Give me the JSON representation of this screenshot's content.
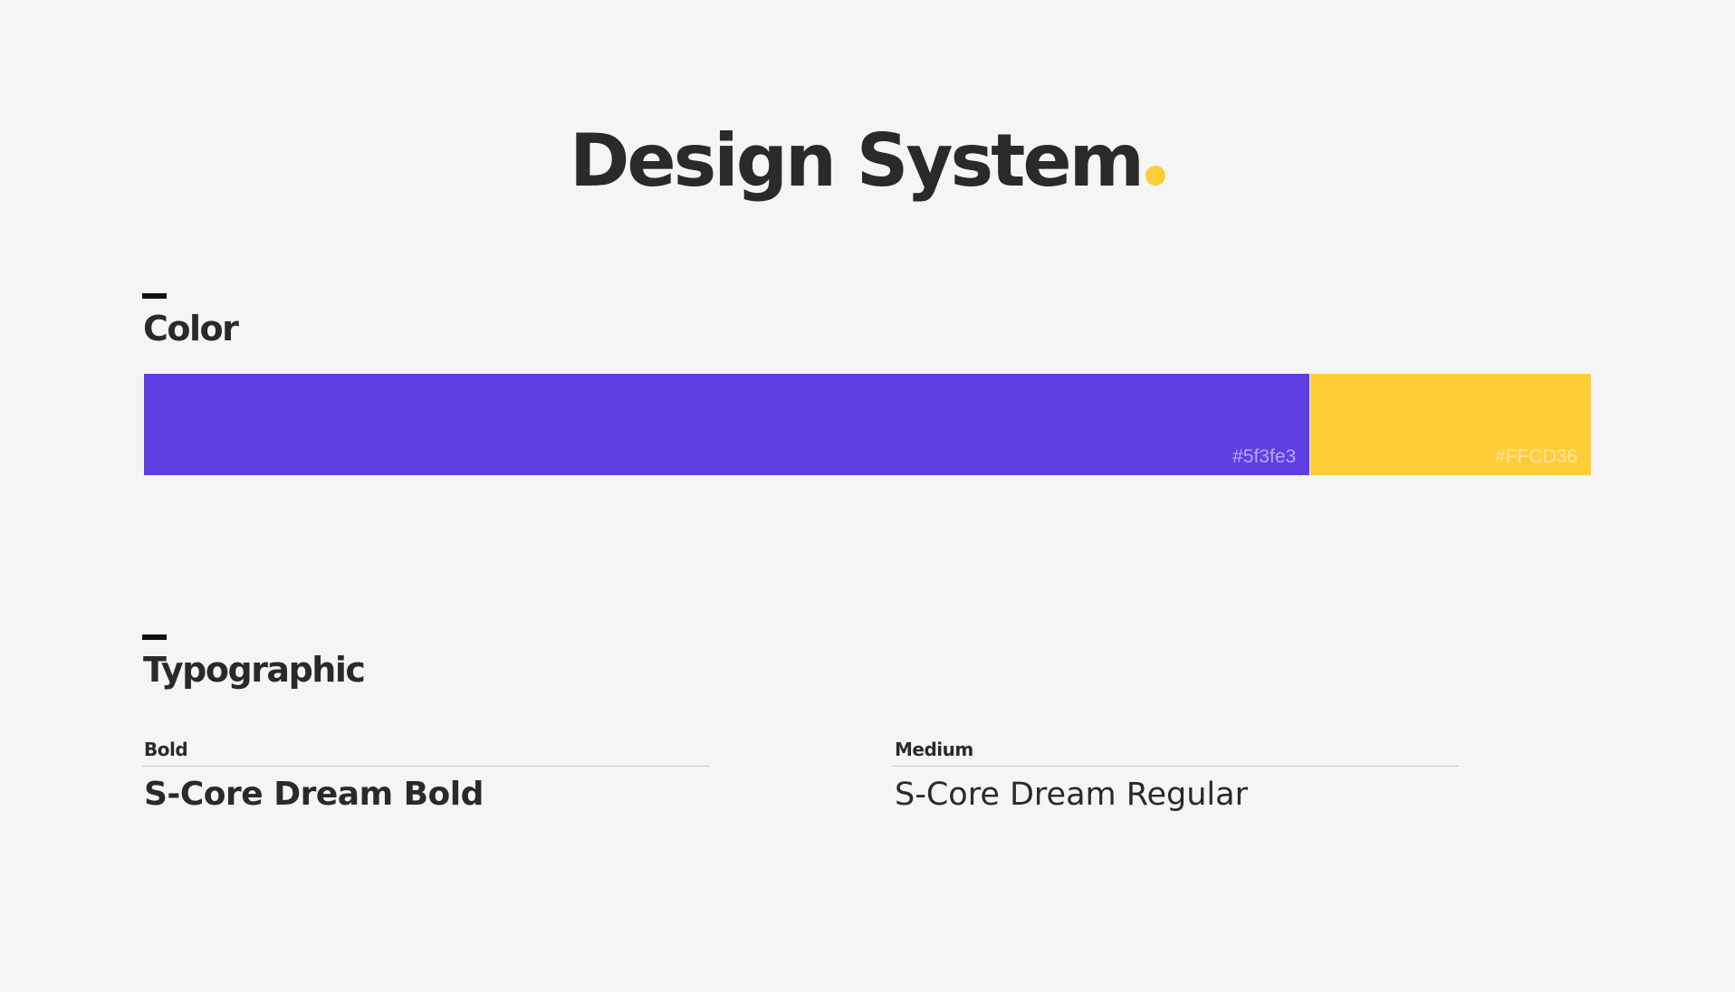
{
  "header": {
    "title": "Design System",
    "dot_color": "#FFCD36"
  },
  "color_section": {
    "title": "Color",
    "swatches": [
      {
        "hex_label": "#5f3fe3",
        "color": "#5f3fe3",
        "share": 0.806
      },
      {
        "hex_label": "#FFCD36",
        "color": "#FFCD36",
        "share": 0.194
      }
    ]
  },
  "typography_section": {
    "title": "Typographic",
    "samples": [
      {
        "weight_label": "Bold",
        "sample_text": "S-Core Dream Bold"
      },
      {
        "weight_label": "Medium",
        "sample_text": "S-Core Dream Regular"
      }
    ]
  }
}
